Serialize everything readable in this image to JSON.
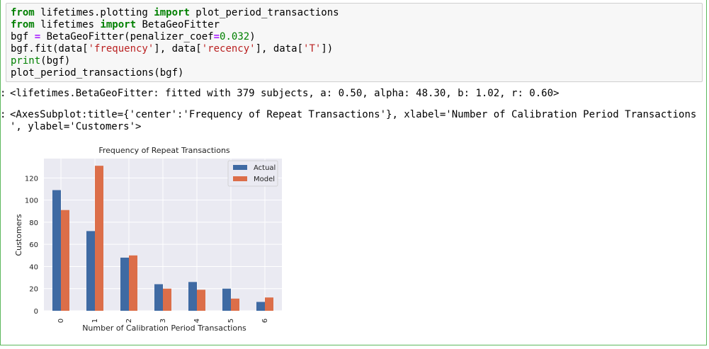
{
  "code_lines": [
    [
      {
        "t": "from",
        "c": "kw"
      },
      {
        "t": " lifetimes.plotting ",
        "c": ""
      },
      {
        "t": "import",
        "c": "kw"
      },
      {
        "t": " plot_period_transactions",
        "c": ""
      }
    ],
    [
      {
        "t": "from",
        "c": "kw"
      },
      {
        "t": " lifetimes ",
        "c": ""
      },
      {
        "t": "import",
        "c": "kw"
      },
      {
        "t": " BetaGeoFitter",
        "c": ""
      }
    ],
    [
      {
        "t": "bgf ",
        "c": ""
      },
      {
        "t": "=",
        "c": "op"
      },
      {
        "t": " BetaGeoFitter(penalizer_coef",
        "c": ""
      },
      {
        "t": "=",
        "c": "op"
      },
      {
        "t": "0.032",
        "c": "num"
      },
      {
        "t": ")",
        "c": ""
      }
    ],
    [
      {
        "t": "bgf.fit(data[",
        "c": ""
      },
      {
        "t": "'frequency'",
        "c": "str"
      },
      {
        "t": "], data[",
        "c": ""
      },
      {
        "t": "'recency'",
        "c": "str"
      },
      {
        "t": "], data[",
        "c": ""
      },
      {
        "t": "'T'",
        "c": "str"
      },
      {
        "t": "])",
        "c": ""
      }
    ],
    [
      {
        "t": "print",
        "c": "bi"
      },
      {
        "t": "(bgf)",
        "c": ""
      }
    ],
    [
      {
        "t": "plot_period_transactions(bgf)",
        "c": ""
      }
    ]
  ],
  "output": {
    "fitter_repr": "<lifetimes.BetaGeoFitter: fitted with 379 subjects, a: 0.50, alpha: 48.30, b: 1.02, r: 0.60>",
    "axes_repr_line1": "<AxesSubplot:title={'center':'Frequency of Repeat Transactions'}, xlabel='Number of Calibration Period Transactions",
    "axes_repr_line2": "', ylabel='Customers'>"
  },
  "chart_data": {
    "type": "bar",
    "title": "Frequency of Repeat Transactions",
    "xlabel": "Number of Calibration Period Transactions",
    "ylabel": "Customers",
    "categories": [
      "0",
      "1",
      "2",
      "3",
      "4",
      "5",
      "6"
    ],
    "series": [
      {
        "name": "Actual",
        "color": "#3f6aa3",
        "values": [
          109,
          72,
          48,
          24,
          26,
          20,
          8
        ]
      },
      {
        "name": "Model",
        "color": "#dc6e49",
        "values": [
          91,
          131,
          50,
          20,
          19,
          11,
          12
        ]
      }
    ],
    "yticks": [
      0,
      20,
      40,
      60,
      80,
      100,
      120
    ],
    "ylim": [
      0,
      137.5
    ],
    "grid": true,
    "legend": "top-right",
    "background": "#eaeaf2"
  }
}
